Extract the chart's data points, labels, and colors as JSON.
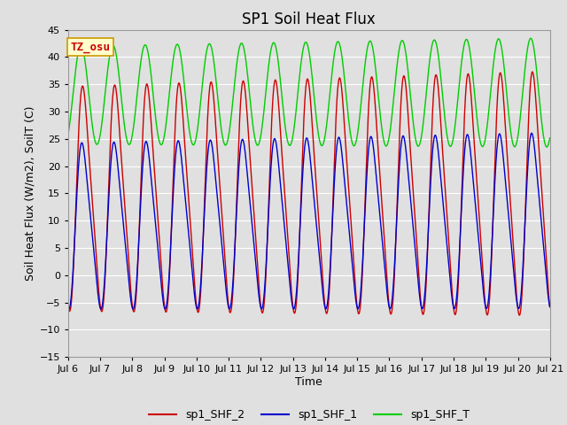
{
  "title": "SP1 Soil Heat Flux",
  "xlabel": "Time",
  "ylabel": "Soil Heat Flux (W/m2), SoilT (C)",
  "ylim": [
    -15,
    45
  ],
  "yticks": [
    -15,
    -10,
    -5,
    0,
    5,
    10,
    15,
    20,
    25,
    30,
    35,
    40,
    45
  ],
  "xtick_labels": [
    "Jul 6",
    "Jul 7",
    "Jul 8",
    "Jul 9",
    "Jul 10",
    "Jul 11",
    "Jul 12",
    "Jul 13",
    "Jul 14",
    "Jul 15",
    "Jul 16",
    "Jul 17",
    "Jul 18",
    "Jul 19",
    "Jul 20",
    "Jul 21"
  ],
  "legend_labels": [
    "sp1_SHF_2",
    "sp1_SHF_1",
    "sp1_SHF_T"
  ],
  "legend_colors": [
    "#cc0000",
    "#0000cc",
    "#00cc00"
  ],
  "line_colors": [
    "#cc0000",
    "#0000cc",
    "#00cc00"
  ],
  "annotation_text": "TZ_osu",
  "annotation_color": "#cc0000",
  "annotation_bg": "#ffffcc",
  "annotation_border": "#cc9900",
  "bg_color": "#e0e0e0",
  "plot_bg": "#e0e0e0",
  "grid_color": "#ffffff",
  "title_fontsize": 12,
  "axis_fontsize": 9,
  "tick_fontsize": 8,
  "legend_fontsize": 9,
  "n_days": 15,
  "pts_per_day": 144
}
